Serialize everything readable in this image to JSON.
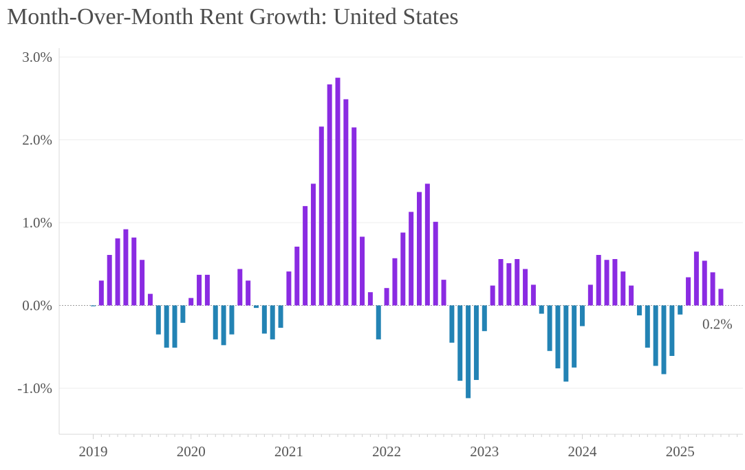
{
  "chart_data": {
    "type": "bar",
    "title": "Month-Over-Month Rent Growth: United States",
    "xlabel": "",
    "ylabel": "",
    "ylim": [
      -1.5,
      3.0
    ],
    "y_ticks": [
      {
        "value": 3.0,
        "label": "3.0%"
      },
      {
        "value": 2.0,
        "label": "2.0%"
      },
      {
        "value": 1.0,
        "label": "1.0%"
      },
      {
        "value": 0.0,
        "label": "0.0%"
      },
      {
        "value": -1.0,
        "label": "-1.0%"
      }
    ],
    "x_ticks": [
      "2019",
      "2020",
      "2021",
      "2022",
      "2023",
      "2024",
      "2025"
    ],
    "start": {
      "year": 2019,
      "month": 1
    },
    "values": [
      -0.01,
      0.3,
      0.61,
      0.81,
      0.92,
      0.82,
      0.55,
      0.14,
      -0.35,
      -0.51,
      -0.51,
      -0.21,
      0.09,
      0.37,
      0.37,
      -0.41,
      -0.48,
      -0.35,
      0.44,
      0.3,
      -0.03,
      -0.34,
      -0.41,
      -0.27,
      0.41,
      0.71,
      1.2,
      1.47,
      2.16,
      2.67,
      2.75,
      2.49,
      2.15,
      0.83,
      0.16,
      -0.41,
      0.21,
      0.57,
      0.88,
      1.13,
      1.37,
      1.47,
      1.01,
      0.31,
      -0.45,
      -0.91,
      -1.12,
      -0.9,
      -0.31,
      0.24,
      0.56,
      0.51,
      0.56,
      0.44,
      0.25,
      -0.1,
      -0.55,
      -0.76,
      -0.92,
      -0.75,
      -0.25,
      0.25,
      0.61,
      0.55,
      0.56,
      0.41,
      0.24,
      -0.12,
      -0.51,
      -0.73,
      -0.83,
      -0.61,
      -0.11,
      0.34,
      0.65,
      0.54,
      0.4,
      0.2
    ],
    "latest_label": "0.2%",
    "colors": {
      "positive": "#8a2be2",
      "negative": "#2383b4"
    }
  }
}
